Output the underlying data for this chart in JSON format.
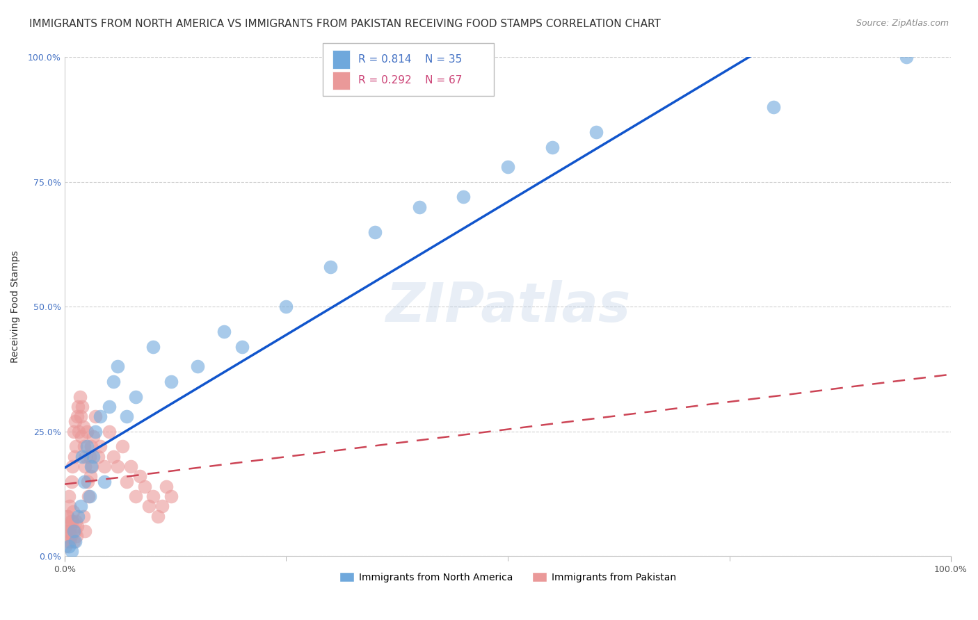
{
  "title": "IMMIGRANTS FROM NORTH AMERICA VS IMMIGRANTS FROM PAKISTAN RECEIVING FOOD STAMPS CORRELATION CHART",
  "source": "Source: ZipAtlas.com",
  "ylabel": "Receiving Food Stamps",
  "ytick_labels": [
    "0.0%",
    "25.0%",
    "50.0%",
    "75.0%",
    "100.0%"
  ],
  "ytick_values": [
    0,
    25,
    50,
    75,
    100
  ],
  "xtick_labels": [
    "0.0%",
    "100.0%"
  ],
  "xtick_values": [
    0,
    100
  ],
  "xlim": [
    0,
    100
  ],
  "ylim": [
    0,
    100
  ],
  "legend_R_blue": "R = 0.814",
  "legend_N_blue": "N = 35",
  "legend_R_pink": "R = 0.292",
  "legend_N_pink": "N = 67",
  "legend_label_blue": "Immigrants from North America",
  "legend_label_pink": "Immigrants from Pakistan",
  "blue_color": "#6fa8dc",
  "pink_color": "#ea9999",
  "blue_line_color": "#1155cc",
  "pink_line_color": "#cc4455",
  "watermark_text": "ZIPatlas",
  "title_fontsize": 11,
  "source_fontsize": 9,
  "axis_label_fontsize": 10,
  "tick_fontsize": 9,
  "legend_fontsize": 11,
  "blue_scatter_x": [
    0.5,
    1.0,
    0.8,
    1.5,
    1.2,
    2.0,
    1.8,
    2.5,
    2.2,
    3.0,
    2.8,
    3.5,
    3.2,
    4.0,
    4.5,
    5.0,
    5.5,
    6.0,
    7.0,
    8.0,
    10.0,
    12.0,
    15.0,
    18.0,
    20.0,
    25.0,
    30.0,
    35.0,
    40.0,
    45.0,
    50.0,
    55.0,
    60.0,
    80.0,
    95.0
  ],
  "blue_scatter_y": [
    2.0,
    5.0,
    1.0,
    8.0,
    3.0,
    20.0,
    10.0,
    22.0,
    15.0,
    18.0,
    12.0,
    25.0,
    20.0,
    28.0,
    15.0,
    30.0,
    35.0,
    38.0,
    28.0,
    32.0,
    42.0,
    35.0,
    38.0,
    45.0,
    42.0,
    50.0,
    58.0,
    65.0,
    70.0,
    72.0,
    78.0,
    82.0,
    85.0,
    90.0,
    100.0
  ],
  "pink_scatter_x": [
    0.2,
    0.3,
    0.4,
    0.5,
    0.6,
    0.7,
    0.8,
    0.9,
    1.0,
    1.1,
    1.2,
    1.3,
    1.4,
    1.5,
    1.6,
    1.7,
    1.8,
    1.9,
    2.0,
    2.1,
    2.2,
    2.3,
    2.4,
    2.5,
    2.6,
    2.7,
    2.8,
    2.9,
    3.0,
    3.1,
    3.2,
    3.5,
    3.8,
    4.0,
    4.5,
    5.0,
    5.5,
    6.0,
    6.5,
    7.0,
    7.5,
    8.0,
    8.5,
    9.0,
    9.5,
    10.0,
    10.5,
    11.0,
    11.5,
    12.0,
    0.1,
    0.15,
    0.25,
    0.35,
    0.45,
    0.55,
    0.65,
    0.75,
    0.85,
    0.95,
    1.05,
    1.15,
    1.25,
    1.35,
    1.45,
    2.15,
    2.25
  ],
  "pink_scatter_y": [
    5.0,
    8.0,
    3.0,
    12.0,
    10.0,
    7.0,
    15.0,
    18.0,
    25.0,
    20.0,
    27.0,
    22.0,
    28.0,
    30.0,
    25.0,
    32.0,
    28.0,
    24.0,
    30.0,
    26.0,
    22.0,
    18.0,
    20.0,
    25.0,
    15.0,
    12.0,
    20.0,
    16.0,
    22.0,
    18.0,
    24.0,
    28.0,
    20.0,
    22.0,
    18.0,
    25.0,
    20.0,
    18.0,
    22.0,
    15.0,
    18.0,
    12.0,
    16.0,
    14.0,
    10.0,
    12.0,
    8.0,
    10.0,
    14.0,
    12.0,
    2.0,
    4.0,
    6.0,
    8.0,
    5.0,
    3.0,
    6.0,
    4.0,
    7.0,
    9.0,
    3.0,
    5.0,
    7.0,
    4.0,
    6.0,
    8.0,
    5.0
  ]
}
